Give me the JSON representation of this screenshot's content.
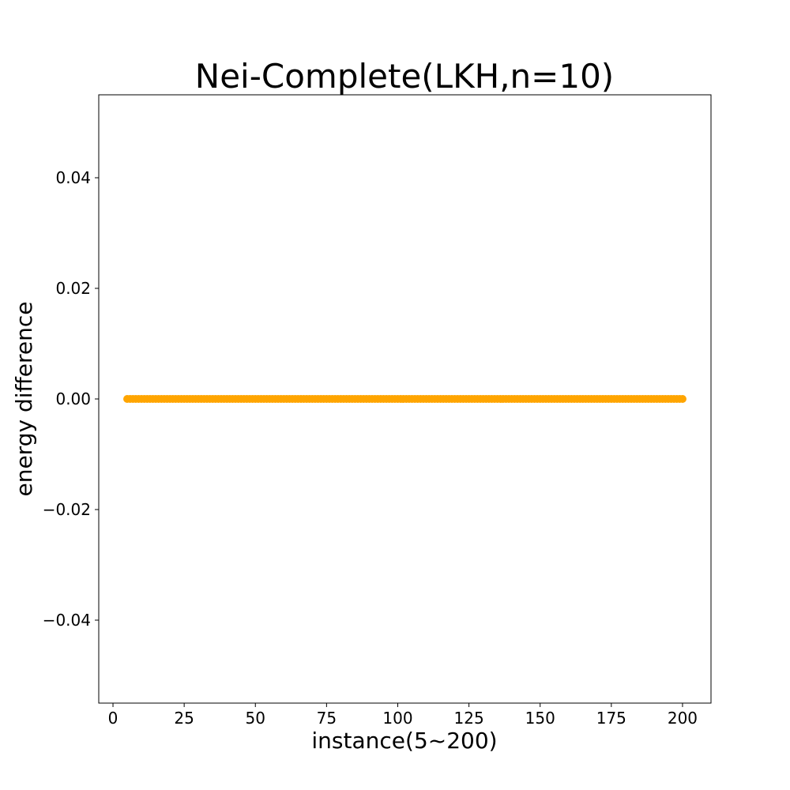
{
  "chart_data": {
    "type": "scatter",
    "title": "Nei-Complete(LKH,n=10)",
    "xlabel": "instance(5~200)",
    "ylabel": "energy difference",
    "xlim": [
      -5,
      210
    ],
    "ylim": [
      -0.055,
      0.055
    ],
    "x_ticks": [
      0,
      25,
      50,
      75,
      100,
      125,
      150,
      175,
      200
    ],
    "x_tick_labels": [
      "0",
      "25",
      "50",
      "75",
      "100",
      "125",
      "150",
      "175",
      "200"
    ],
    "y_ticks": [
      0.04,
      0.02,
      0.0,
      -0.02,
      -0.04
    ],
    "y_tick_labels": [
      "0.04",
      "0.02",
      "0.00",
      "−0.02",
      "−0.04"
    ],
    "grid": false,
    "marker_color": "#FFA500",
    "series": [
      {
        "x_start": 5,
        "x_end": 200,
        "x_step": 1,
        "y_value": 0.0
      }
    ]
  }
}
